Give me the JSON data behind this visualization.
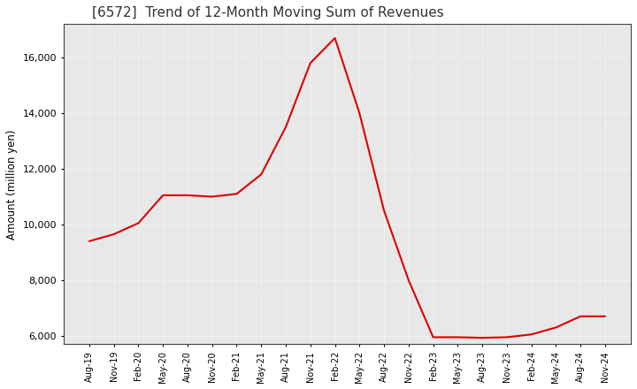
{
  "title": "[6572]  Trend of 12-Month Moving Sum of Revenues",
  "ylabel": "Amount (million yen)",
  "line_color": "#dd0000",
  "background_color": "#ffffff",
  "plot_bg_color": "#e8e8e8",
  "grid_color": "#ffffff",
  "ylim": [
    5700,
    17200
  ],
  "yticks": [
    6000,
    8000,
    10000,
    12000,
    14000,
    16000
  ],
  "x_labels": [
    "Aug-19",
    "Nov-19",
    "Feb-20",
    "May-20",
    "Aug-20",
    "Nov-20",
    "Feb-21",
    "May-21",
    "Aug-21",
    "Nov-21",
    "Feb-22",
    "May-22",
    "Aug-22",
    "Nov-22",
    "Feb-23",
    "May-23",
    "Aug-23",
    "Nov-23",
    "Feb-24",
    "May-24",
    "Aug-24",
    "Nov-24"
  ],
  "values": [
    9400,
    9650,
    10050,
    11050,
    11050,
    11000,
    11100,
    11800,
    13500,
    15800,
    16700,
    14000,
    10500,
    8000,
    5950,
    5950,
    5930,
    5950,
    6050,
    6300,
    6700,
    6700
  ],
  "title_fontsize": 11,
  "ylabel_fontsize": 8.5,
  "tick_fontsize": 8,
  "xtick_fontsize": 7
}
